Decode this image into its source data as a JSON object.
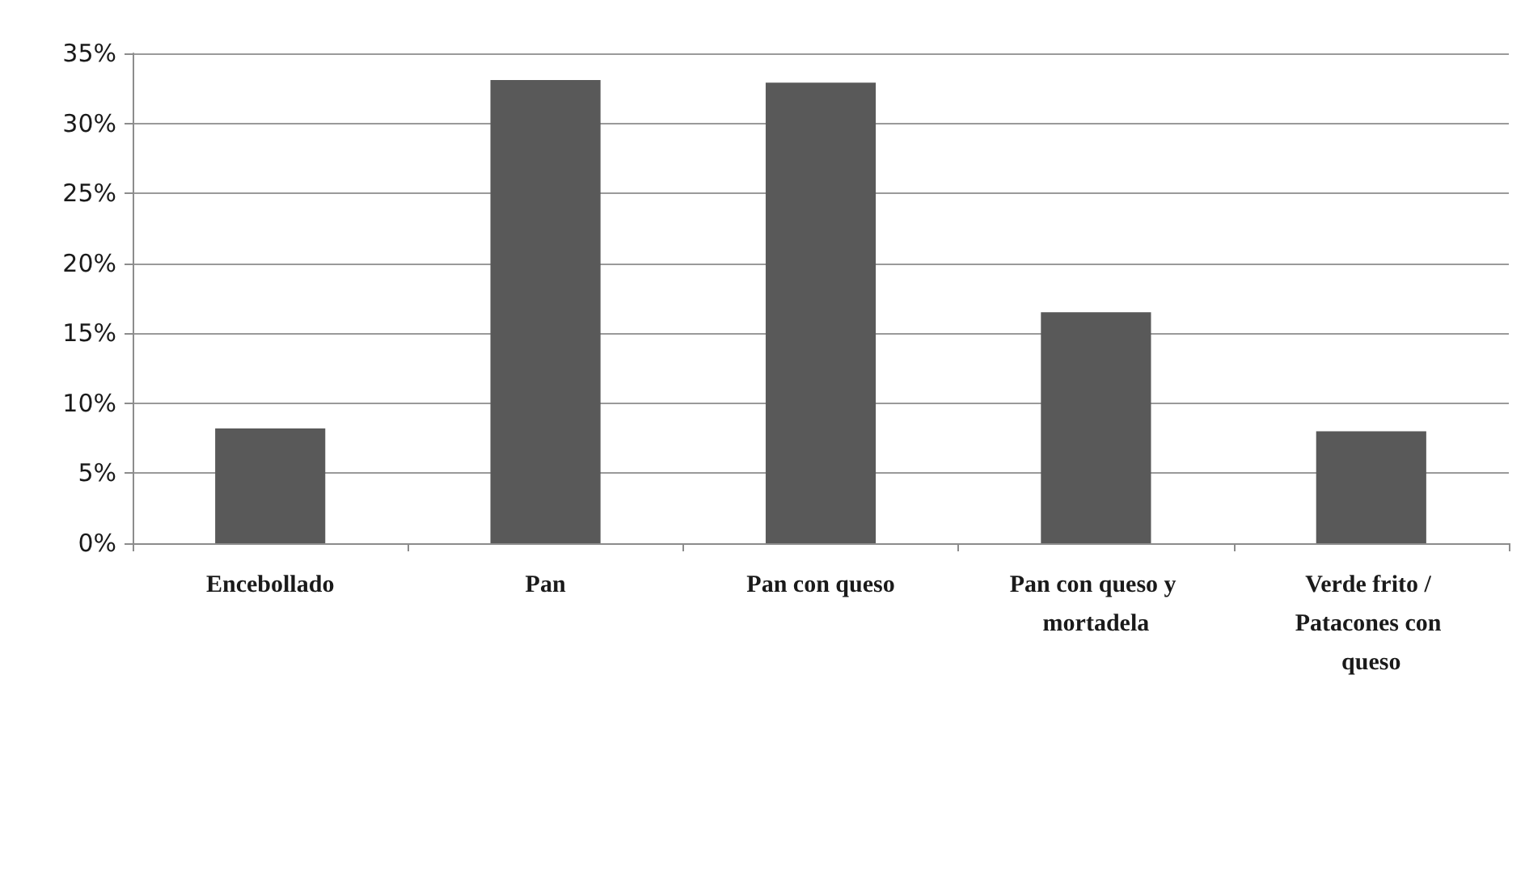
{
  "chart_data": {
    "type": "bar",
    "categories": [
      "Encebollado",
      "Pan",
      "Pan con queso",
      "Pan con queso y mortadela",
      "Verde frito / Patacones con queso"
    ],
    "values": [
      8.2,
      33.1,
      32.9,
      16.5,
      8.0
    ],
    "color": "#595959",
    "ylim": [
      0,
      35
    ],
    "yticks": [
      {
        "value": 0,
        "label": "0%"
      },
      {
        "value": 5,
        "label": "5%"
      },
      {
        "value": 10,
        "label": "10%"
      },
      {
        "value": 15,
        "label": "15%"
      },
      {
        "value": 20,
        "label": "20%"
      },
      {
        "value": 25,
        "label": "25%"
      },
      {
        "value": 30,
        "label": "30%"
      },
      {
        "value": 35,
        "label": "35%"
      }
    ],
    "grid": "y"
  }
}
